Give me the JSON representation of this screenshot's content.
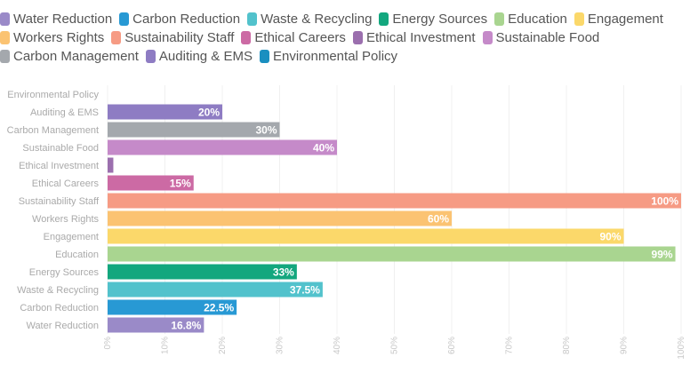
{
  "chart_data": {
    "type": "bar",
    "orientation": "horizontal",
    "categories": [
      "Environmental Policy",
      "Auditing & EMS",
      "Carbon Management",
      "Sustainable Food",
      "Ethical Investment",
      "Ethical Careers",
      "Sustainability Staff",
      "Workers Rights",
      "Engagement",
      "Education",
      "Energy Sources",
      "Waste & Recycling",
      "Carbon Reduction",
      "Water Reduction"
    ],
    "values": [
      0,
      20,
      30,
      40,
      1,
      15,
      100,
      60,
      90,
      99,
      33,
      37.5,
      22.5,
      16.8
    ],
    "data_labels": [
      "",
      "20%",
      "30%",
      "40%",
      "",
      "15%",
      "100%",
      "60%",
      "90%",
      "99%",
      "33%",
      "37.5%",
      "22.5%",
      "16.8%"
    ],
    "colors": [
      "#1a8fc0",
      "#8e7cc3",
      "#a4a8ad",
      "#c58ac9",
      "#9b6fae",
      "#cc6aa4",
      "#f69b84",
      "#fbc372",
      "#fbd86a",
      "#a9d590",
      "#13a77e",
      "#52c2cc",
      "#2899d4",
      "#9a8ac8"
    ],
    "x_ticks": [
      "0%",
      "10%",
      "20%",
      "30%",
      "40%",
      "50%",
      "60%",
      "70%",
      "80%",
      "90%",
      "100%"
    ],
    "xlim": [
      0,
      100
    ],
    "title": "",
    "xlabel": "",
    "ylabel": "",
    "grid": true,
    "legend_position": "top"
  },
  "legend": [
    {
      "label": "Water Reduction",
      "color": "#9a8ac8"
    },
    {
      "label": "Carbon Reduction",
      "color": "#2899d4"
    },
    {
      "label": "Waste & Recycling",
      "color": "#52c2cc"
    },
    {
      "label": "Energy Sources",
      "color": "#13a77e"
    },
    {
      "label": "Education",
      "color": "#a9d590"
    },
    {
      "label": "Engagement",
      "color": "#fbd86a"
    },
    {
      "label": "Workers Rights",
      "color": "#fbc372"
    },
    {
      "label": "Sustainability Staff",
      "color": "#f69b84"
    },
    {
      "label": "Ethical Careers",
      "color": "#cc6aa4"
    },
    {
      "label": "Ethical Investment",
      "color": "#9b6fae"
    },
    {
      "label": "Sustainable Food",
      "color": "#c58ac9"
    },
    {
      "label": "Carbon Management",
      "color": "#a4a8ad"
    },
    {
      "label": "Auditing & EMS",
      "color": "#8e7cc3"
    },
    {
      "label": "Environmental Policy",
      "color": "#1a8fc0"
    }
  ]
}
